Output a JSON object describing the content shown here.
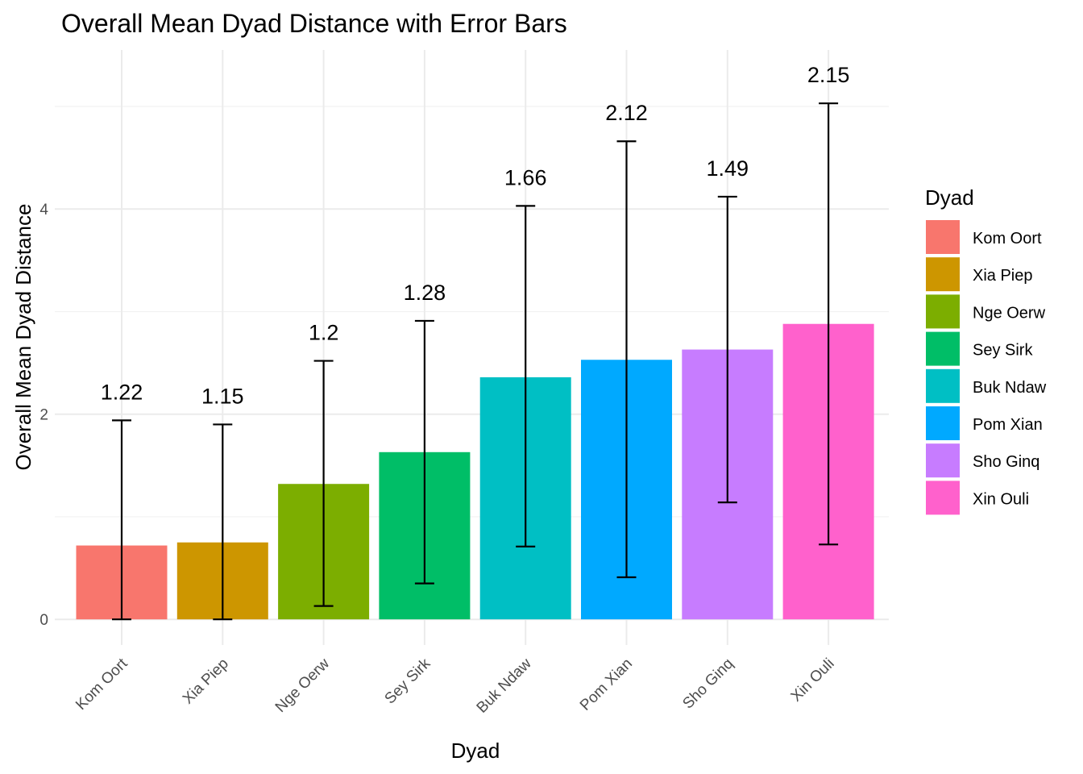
{
  "chart_data": {
    "type": "bar",
    "title": "Overall Mean Dyad Distance with Error Bars",
    "xlabel": "Dyad",
    "ylabel": "Overall Mean Dyad Distance",
    "ylim": [
      -0.25,
      5.55
    ],
    "yticks": [
      0,
      2,
      4
    ],
    "grid": true,
    "legend": {
      "title": "Dyad",
      "placement": "right"
    },
    "categories": [
      "Kom Oort",
      "Xia Piep",
      "Nge Oerw",
      "Sey Sirk",
      "Buk Ndaw",
      "Pom Xian",
      "Sho Ginq",
      "Xin Ouli"
    ],
    "values": [
      0.72,
      0.75,
      1.32,
      1.63,
      2.36,
      2.53,
      2.63,
      2.88
    ],
    "error_low": [
      0.0,
      0.0,
      0.13,
      0.35,
      0.71,
      0.41,
      1.14,
      0.73
    ],
    "error_high": [
      1.94,
      1.9,
      2.52,
      2.91,
      4.03,
      4.66,
      4.12,
      5.03
    ],
    "labels": [
      "1.22",
      "1.15",
      "1.2",
      "1.28",
      "1.66",
      "2.12",
      "1.49",
      "2.15"
    ],
    "colors": [
      "#F8766D",
      "#CD9600",
      "#7CAE00",
      "#00BE67",
      "#00BFC4",
      "#00A9FF",
      "#C77CFF",
      "#FF61CC"
    ]
  }
}
